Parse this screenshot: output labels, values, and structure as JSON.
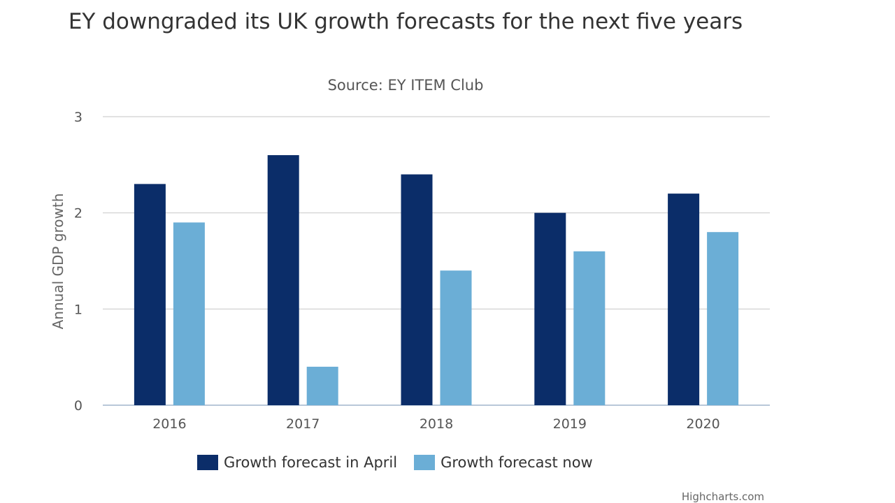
{
  "chart_data": {
    "type": "bar",
    "title": "EY downgraded its UK growth forecasts for the next five years",
    "subtitle": "Source: EY ITEM Club",
    "ylabel": "Annual GDP growth",
    "xlabel": "",
    "ylim": [
      0,
      3
    ],
    "yticks": [
      "0",
      "1",
      "2",
      "3"
    ],
    "categories": [
      "2016",
      "2017",
      "2018",
      "2019",
      "2020"
    ],
    "series": [
      {
        "name": "Growth forecast in April",
        "color": "#0b2d69",
        "values": [
          2.3,
          2.6,
          2.4,
          2.0,
          2.2
        ]
      },
      {
        "name": "Growth forecast now",
        "color": "#6baed6",
        "values": [
          1.9,
          0.4,
          1.4,
          1.6,
          1.8
        ]
      }
    ],
    "grid": true,
    "legend": "bottom"
  },
  "credits": "Highcharts.com"
}
